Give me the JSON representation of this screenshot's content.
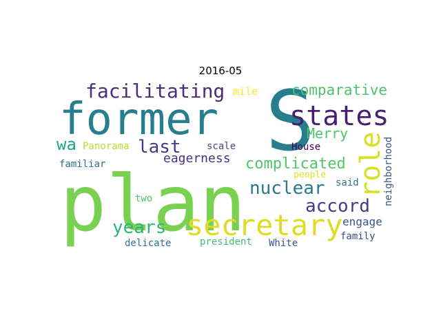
{
  "title": "2016-05",
  "words": [
    {
      "text": "S",
      "color": "#277f8e"
    },
    {
      "text": "plan",
      "color": "#7ad151"
    },
    {
      "text": "former",
      "color": "#277f8e"
    },
    {
      "text": "states",
      "color": "#481f70"
    },
    {
      "text": "secretary",
      "color": "#e0dc26"
    },
    {
      "text": "facilitating",
      "color": "#472f7d"
    },
    {
      "text": "role",
      "color": "#d9e021"
    },
    {
      "text": "comparative",
      "color": "#4cc26c"
    },
    {
      "text": "accord",
      "color": "#433e85"
    },
    {
      "text": "nuclear",
      "color": "#2a788e"
    },
    {
      "text": "complicated",
      "color": "#52c569"
    },
    {
      "text": "years",
      "color": "#2fb47c"
    },
    {
      "text": "last",
      "color": "#443983"
    },
    {
      "text": "Merry",
      "color": "#4ec36b"
    },
    {
      "text": "wa",
      "color": "#21a585"
    },
    {
      "text": "eagerness",
      "color": "#46327e"
    },
    {
      "text": "engage",
      "color": "#39568c"
    },
    {
      "text": "neighborhood",
      "color": "#3b528b"
    },
    {
      "text": "mile",
      "color": "#fde725"
    },
    {
      "text": "Panorama",
      "color": "#b5de2b"
    },
    {
      "text": "scale",
      "color": "#3e4a89"
    },
    {
      "text": "House",
      "color": "#440154"
    },
    {
      "text": "familiar",
      "color": "#2c728e"
    },
    {
      "text": "people",
      "color": "#dde318"
    },
    {
      "text": "said",
      "color": "#2a788e"
    },
    {
      "text": "two",
      "color": "#50c46a"
    },
    {
      "text": "family",
      "color": "#3e4989"
    },
    {
      "text": "delicate",
      "color": "#2c738e"
    },
    {
      "text": "president",
      "color": "#40bd72"
    },
    {
      "text": "White",
      "color": "#3a548c"
    }
  ]
}
